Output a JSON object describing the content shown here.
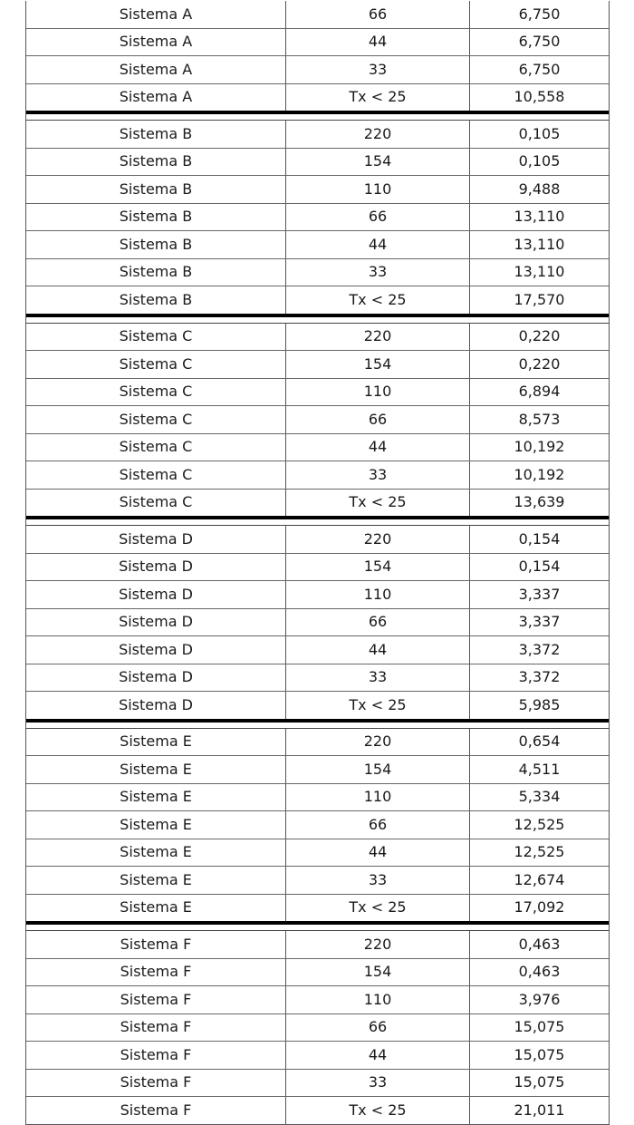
{
  "groups": [
    {
      "rows": [
        [
          "Sistema A",
          "66",
          "6,750"
        ],
        [
          "Sistema A",
          "44",
          "6,750"
        ],
        [
          "Sistema A",
          "33",
          "6,750"
        ],
        [
          "Sistema A",
          "Tx < 25",
          "10,558"
        ]
      ]
    },
    {
      "rows": [
        [
          "Sistema B",
          "220",
          "0,105"
        ],
        [
          "Sistema B",
          "154",
          "0,105"
        ],
        [
          "Sistema B",
          "110",
          "9,488"
        ],
        [
          "Sistema B",
          "66",
          "13,110"
        ],
        [
          "Sistema B",
          "44",
          "13,110"
        ],
        [
          "Sistema B",
          "33",
          "13,110"
        ],
        [
          "Sistema B",
          "Tx < 25",
          "17,570"
        ]
      ]
    },
    {
      "rows": [
        [
          "Sistema C",
          "220",
          "0,220"
        ],
        [
          "Sistema C",
          "154",
          "0,220"
        ],
        [
          "Sistema C",
          "110",
          "6,894"
        ],
        [
          "Sistema C",
          "66",
          "8,573"
        ],
        [
          "Sistema C",
          "44",
          "10,192"
        ],
        [
          "Sistema C",
          "33",
          "10,192"
        ],
        [
          "Sistema C",
          "Tx < 25",
          "13,639"
        ]
      ]
    },
    {
      "rows": [
        [
          "Sistema D",
          "220",
          "0,154"
        ],
        [
          "Sistema D",
          "154",
          "0,154"
        ],
        [
          "Sistema D",
          "110",
          "3,337"
        ],
        [
          "Sistema D",
          "66",
          "3,337"
        ],
        [
          "Sistema D",
          "44",
          "3,372"
        ],
        [
          "Sistema D",
          "33",
          "3,372"
        ],
        [
          "Sistema D",
          "Tx < 25",
          "5,985"
        ]
      ]
    },
    {
      "rows": [
        [
          "Sistema E",
          "220",
          "0,654"
        ],
        [
          "Sistema E",
          "154",
          "4,511"
        ],
        [
          "Sistema E",
          "110",
          "5,334"
        ],
        [
          "Sistema E",
          "66",
          "12,525"
        ],
        [
          "Sistema E",
          "44",
          "12,525"
        ],
        [
          "Sistema E",
          "33",
          "12,674"
        ],
        [
          "Sistema E",
          "Tx < 25",
          "17,092"
        ]
      ]
    },
    {
      "rows": [
        [
          "Sistema F",
          "220",
          "0,463"
        ],
        [
          "Sistema F",
          "154",
          "0,463"
        ],
        [
          "Sistema F",
          "110",
          "3,976"
        ],
        [
          "Sistema F",
          "66",
          "15,075"
        ],
        [
          "Sistema F",
          "44",
          "15,075"
        ],
        [
          "Sistema F",
          "33",
          "15,075"
        ],
        [
          "Sistema F",
          "Tx < 25",
          "21,011"
        ]
      ]
    }
  ]
}
